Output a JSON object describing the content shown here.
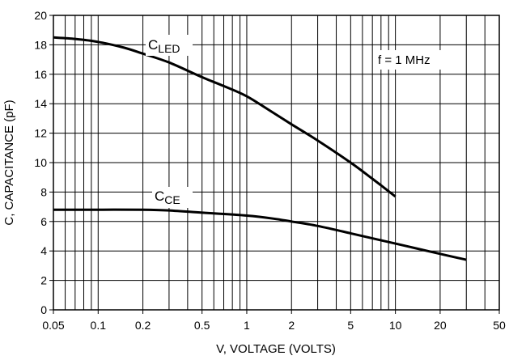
{
  "chart_data": {
    "type": "line",
    "title": "",
    "xlabel": "V, VOLTAGE (VOLTS)",
    "ylabel": "C, CAPACITANCE (pF)",
    "xscale": "log",
    "xlim": [
      0.05,
      50
    ],
    "ylim": [
      0,
      20
    ],
    "x_ticks": [
      0.05,
      0.1,
      0.2,
      0.5,
      1,
      2,
      5,
      10,
      20,
      50
    ],
    "x_tick_labels": [
      "0.05",
      "0.1",
      "0.2",
      "0.5",
      "1",
      "2",
      "5",
      "10",
      "20",
      "50"
    ],
    "y_ticks": [
      0,
      2,
      4,
      6,
      8,
      10,
      12,
      14,
      16,
      18,
      20
    ],
    "y_tick_labels": [
      "0",
      "2",
      "4",
      "6",
      "8",
      "10",
      "12",
      "14",
      "16",
      "18",
      "20"
    ],
    "grid": true,
    "annotation": "f = 1 MHz",
    "series": [
      {
        "name_main": "C",
        "name_sub": "LED",
        "x": [
          0.05,
          0.07,
          0.1,
          0.15,
          0.2,
          0.3,
          0.5,
          0.7,
          1,
          1.5,
          2,
          3,
          5,
          7,
          10
        ],
        "y": [
          18.5,
          18.4,
          18.2,
          17.8,
          17.4,
          16.8,
          15.8,
          15.2,
          14.5,
          13.4,
          12.6,
          11.5,
          10.0,
          8.9,
          7.7
        ]
      },
      {
        "name_main": "C",
        "name_sub": "CE",
        "x": [
          0.05,
          0.1,
          0.2,
          0.3,
          0.5,
          1,
          1.5,
          2,
          3,
          5,
          10,
          20,
          30
        ],
        "y": [
          6.8,
          6.8,
          6.8,
          6.75,
          6.6,
          6.4,
          6.2,
          6.0,
          5.7,
          5.2,
          4.5,
          3.8,
          3.4
        ]
      }
    ]
  }
}
